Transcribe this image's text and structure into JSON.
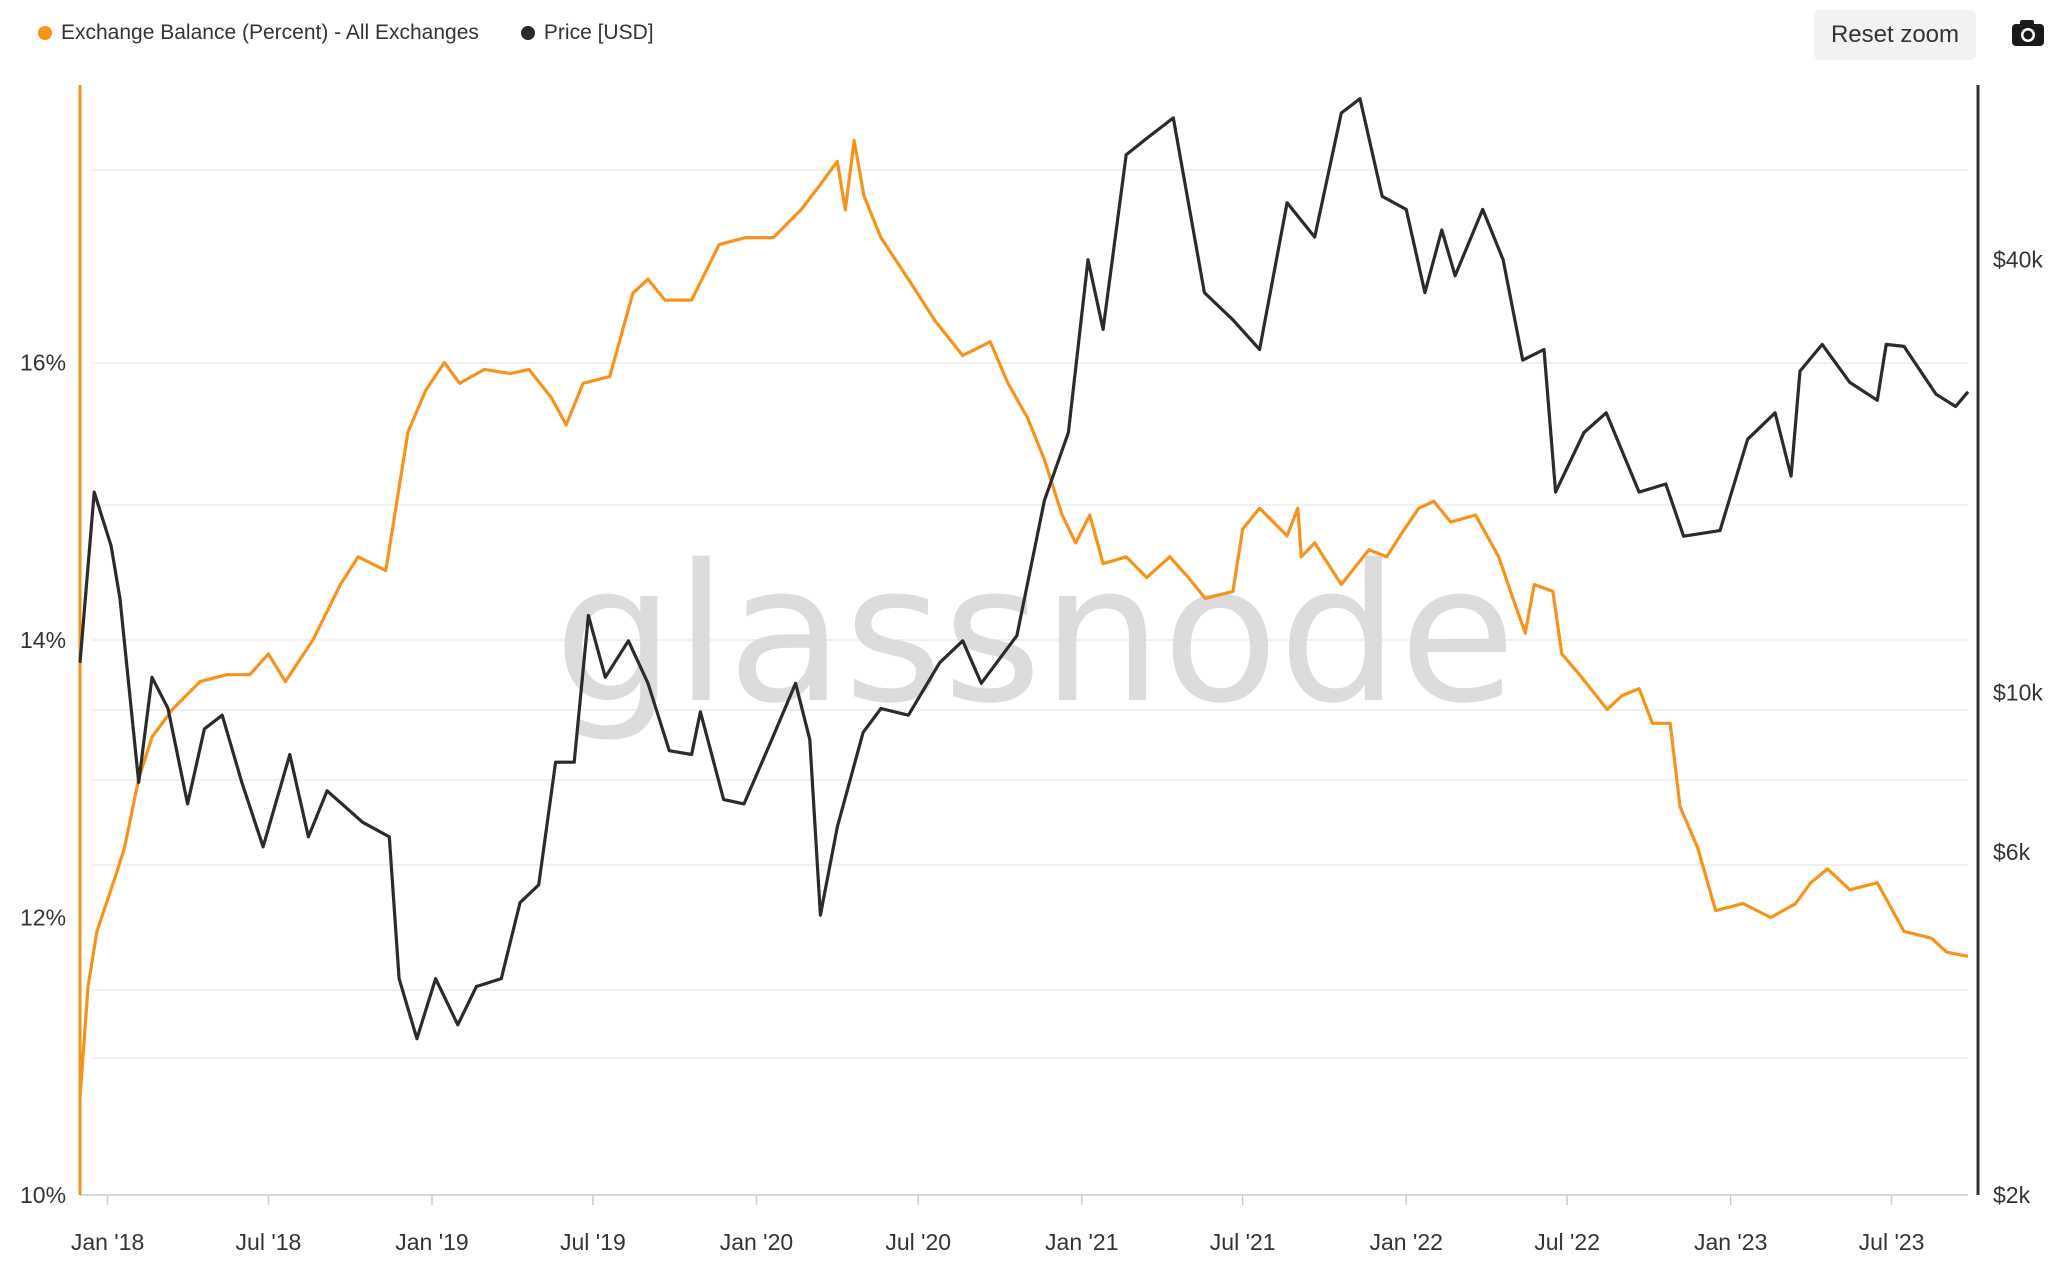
{
  "legend": {
    "items": [
      {
        "label": "Exchange Balance (Percent) - All Exchanges",
        "color": "#f7931a"
      },
      {
        "label": "Price [USD]",
        "color": "#2b2b2b"
      }
    ]
  },
  "toolbar": {
    "reset_zoom_label": "Reset zoom",
    "camera_icon": "camera-icon"
  },
  "watermark": "glassnode",
  "chart_data": {
    "type": "line",
    "x_ticks": [
      "Jan '18",
      "Jul '18",
      "Jan '19",
      "Jul '19",
      "Jan '20",
      "Jul '20",
      "Jan '21",
      "Jul '21",
      "Jan '22",
      "Jul '22",
      "Jan '23",
      "Jul '23"
    ],
    "y_left": {
      "ticks": [
        "10%",
        "12%",
        "14%",
        "16%"
      ],
      "min": 10,
      "max": 18,
      "unit": "%"
    },
    "y_right": {
      "ticks": [
        "$2k",
        "$6k",
        "$10k",
        "$40k"
      ],
      "scale": "log",
      "min": 2000,
      "max": 70000,
      "unit": "USD"
    },
    "series": [
      {
        "name": "Exchange Balance (Percent) - All Exchanges",
        "color": "#f7931a",
        "axis": "left",
        "points": [
          [
            "2017-12-01",
            10.7
          ],
          [
            "2017-12-10",
            11.5
          ],
          [
            "2017-12-20",
            11.9
          ],
          [
            "2018-01-10",
            12.3
          ],
          [
            "2018-01-20",
            12.5
          ],
          [
            "2018-02-05",
            13.0
          ],
          [
            "2018-02-20",
            13.3
          ],
          [
            "2018-03-15",
            13.5
          ],
          [
            "2018-04-15",
            13.7
          ],
          [
            "2018-05-15",
            13.75
          ],
          [
            "2018-06-10",
            13.75
          ],
          [
            "2018-07-01",
            13.9
          ],
          [
            "2018-07-20",
            13.7
          ],
          [
            "2018-08-20",
            14.0
          ],
          [
            "2018-09-20",
            14.4
          ],
          [
            "2018-10-10",
            14.6
          ],
          [
            "2018-11-10",
            14.5
          ],
          [
            "2018-11-20",
            14.9
          ],
          [
            "2018-12-05",
            15.5
          ],
          [
            "2018-12-25",
            15.8
          ],
          [
            "2019-01-15",
            16.0
          ],
          [
            "2019-02-01",
            15.85
          ],
          [
            "2019-03-01",
            15.95
          ],
          [
            "2019-03-30",
            15.92
          ],
          [
            "2019-04-20",
            15.95
          ],
          [
            "2019-05-15",
            15.75
          ],
          [
            "2019-06-01",
            15.55
          ],
          [
            "2019-06-20",
            15.85
          ],
          [
            "2019-07-20",
            15.9
          ],
          [
            "2019-08-15",
            16.5
          ],
          [
            "2019-09-01",
            16.6
          ],
          [
            "2019-09-20",
            16.45
          ],
          [
            "2019-10-20",
            16.45
          ],
          [
            "2019-11-20",
            16.85
          ],
          [
            "2019-12-20",
            16.9
          ],
          [
            "2020-01-20",
            16.9
          ],
          [
            "2020-02-20",
            17.1
          ],
          [
            "2020-03-15",
            17.3
          ],
          [
            "2020-04-01",
            17.45
          ],
          [
            "2020-04-10",
            17.1
          ],
          [
            "2020-04-20",
            17.6
          ],
          [
            "2020-05-01",
            17.2
          ],
          [
            "2020-05-20",
            16.9
          ],
          [
            "2020-06-20",
            16.6
          ],
          [
            "2020-07-20",
            16.3
          ],
          [
            "2020-08-20",
            16.05
          ],
          [
            "2020-09-20",
            16.15
          ],
          [
            "2020-10-10",
            15.85
          ],
          [
            "2020-11-01",
            15.6
          ],
          [
            "2020-11-20",
            15.3
          ],
          [
            "2020-12-10",
            14.9
          ],
          [
            "2020-12-25",
            14.7
          ],
          [
            "2021-01-10",
            14.9
          ],
          [
            "2021-01-25",
            14.55
          ],
          [
            "2021-02-20",
            14.6
          ],
          [
            "2021-03-15",
            14.45
          ],
          [
            "2021-04-10",
            14.6
          ],
          [
            "2021-05-01",
            14.45
          ],
          [
            "2021-05-20",
            14.3
          ],
          [
            "2021-06-20",
            14.35
          ],
          [
            "2021-07-01",
            14.8
          ],
          [
            "2021-07-20",
            14.95
          ],
          [
            "2021-08-20",
            14.75
          ],
          [
            "2021-09-01",
            14.95
          ],
          [
            "2021-09-05",
            14.6
          ],
          [
            "2021-09-20",
            14.7
          ],
          [
            "2021-10-20",
            14.4
          ],
          [
            "2021-11-20",
            14.65
          ],
          [
            "2021-12-10",
            14.6
          ],
          [
            "2021-12-25",
            14.75
          ],
          [
            "2022-01-15",
            14.95
          ],
          [
            "2022-02-01",
            15.0
          ],
          [
            "2022-02-20",
            14.85
          ],
          [
            "2022-03-20",
            14.9
          ],
          [
            "2022-04-15",
            14.6
          ],
          [
            "2022-05-01",
            14.3
          ],
          [
            "2022-05-15",
            14.05
          ],
          [
            "2022-05-25",
            14.4
          ],
          [
            "2022-06-15",
            14.35
          ],
          [
            "2022-06-25",
            13.9
          ],
          [
            "2022-07-15",
            13.75
          ],
          [
            "2022-08-15",
            13.5
          ],
          [
            "2022-09-01",
            13.6
          ],
          [
            "2022-09-20",
            13.65
          ],
          [
            "2022-10-05",
            13.4
          ],
          [
            "2022-10-25",
            13.4
          ],
          [
            "2022-11-05",
            12.8
          ],
          [
            "2022-11-25",
            12.5
          ],
          [
            "2022-12-15",
            12.05
          ],
          [
            "2023-01-15",
            12.1
          ],
          [
            "2023-02-15",
            12.0
          ],
          [
            "2023-03-15",
            12.1
          ],
          [
            "2023-04-01",
            12.25
          ],
          [
            "2023-04-20",
            12.35
          ],
          [
            "2023-05-15",
            12.2
          ],
          [
            "2023-06-15",
            12.25
          ],
          [
            "2023-07-15",
            11.9
          ],
          [
            "2023-08-15",
            11.85
          ],
          [
            "2023-09-01",
            11.75
          ],
          [
            "2023-09-25",
            11.72
          ]
        ]
      },
      {
        "name": "Price [USD]",
        "color": "#2b2b2b",
        "axis": "right",
        "points": [
          [
            "2017-12-01",
            11000
          ],
          [
            "2017-12-17",
            19000
          ],
          [
            "2018-01-05",
            16000
          ],
          [
            "2018-01-15",
            13500
          ],
          [
            "2018-02-05",
            7500
          ],
          [
            "2018-02-20",
            10500
          ],
          [
            "2018-03-10",
            9500
          ],
          [
            "2018-04-01",
            7000
          ],
          [
            "2018-04-20",
            8900
          ],
          [
            "2018-05-10",
            9300
          ],
          [
            "2018-06-01",
            7500
          ],
          [
            "2018-06-25",
            6100
          ],
          [
            "2018-07-25",
            8200
          ],
          [
            "2018-08-15",
            6300
          ],
          [
            "2018-09-05",
            7300
          ],
          [
            "2018-10-15",
            6600
          ],
          [
            "2018-11-14",
            6300
          ],
          [
            "2018-11-25",
            4000
          ],
          [
            "2018-12-15",
            3300
          ],
          [
            "2019-01-05",
            4000
          ],
          [
            "2019-01-30",
            3450
          ],
          [
            "2019-02-20",
            3900
          ],
          [
            "2019-03-20",
            4000
          ],
          [
            "2019-04-10",
            5100
          ],
          [
            "2019-05-01",
            5400
          ],
          [
            "2019-05-20",
            8000
          ],
          [
            "2019-06-10",
            8000
          ],
          [
            "2019-06-26",
            12800
          ],
          [
            "2019-07-15",
            10500
          ],
          [
            "2019-08-10",
            11800
          ],
          [
            "2019-09-01",
            10300
          ],
          [
            "2019-09-25",
            8300
          ],
          [
            "2019-10-20",
            8200
          ],
          [
            "2019-10-30",
            9400
          ],
          [
            "2019-11-25",
            7100
          ],
          [
            "2019-12-18",
            7000
          ],
          [
            "2020-01-20",
            8700
          ],
          [
            "2020-02-14",
            10300
          ],
          [
            "2020-03-01",
            8600
          ],
          [
            "2020-03-13",
            4900
          ],
          [
            "2020-04-01",
            6500
          ],
          [
            "2020-04-30",
            8800
          ],
          [
            "2020-05-20",
            9500
          ],
          [
            "2020-06-20",
            9300
          ],
          [
            "2020-07-25",
            11000
          ],
          [
            "2020-08-20",
            11800
          ],
          [
            "2020-09-10",
            10300
          ],
          [
            "2020-10-20",
            12000
          ],
          [
            "2020-11-20",
            18500
          ],
          [
            "2020-12-17",
            23000
          ],
          [
            "2021-01-08",
            40000
          ],
          [
            "2021-01-25",
            32000
          ],
          [
            "2021-02-20",
            56000
          ],
          [
            "2021-03-15",
            59000
          ],
          [
            "2021-04-14",
            63000
          ],
          [
            "2021-05-19",
            36000
          ],
          [
            "2021-06-20",
            33000
          ],
          [
            "2021-07-20",
            30000
          ],
          [
            "2021-08-20",
            48000
          ],
          [
            "2021-09-20",
            43000
          ],
          [
            "2021-10-20",
            64000
          ],
          [
            "2021-11-10",
            67000
          ],
          [
            "2021-12-05",
            49000
          ],
          [
            "2022-01-01",
            47000
          ],
          [
            "2022-01-22",
            36000
          ],
          [
            "2022-02-10",
            44000
          ],
          [
            "2022-02-25",
            38000
          ],
          [
            "2022-03-28",
            47000
          ],
          [
            "2022-04-20",
            40000
          ],
          [
            "2022-05-12",
            29000
          ],
          [
            "2022-06-05",
            30000
          ],
          [
            "2022-06-18",
            19000
          ],
          [
            "2022-07-20",
            23000
          ],
          [
            "2022-08-14",
            24500
          ],
          [
            "2022-09-20",
            19000
          ],
          [
            "2022-10-20",
            19500
          ],
          [
            "2022-11-09",
            16500
          ],
          [
            "2022-12-20",
            16800
          ],
          [
            "2023-01-20",
            22500
          ],
          [
            "2023-02-20",
            24500
          ],
          [
            "2023-03-10",
            20000
          ],
          [
            "2023-03-20",
            28000
          ],
          [
            "2023-04-14",
            30500
          ],
          [
            "2023-05-15",
            27000
          ],
          [
            "2023-06-15",
            25500
          ],
          [
            "2023-06-25",
            30500
          ],
          [
            "2023-07-15",
            30300
          ],
          [
            "2023-08-20",
            26000
          ],
          [
            "2023-09-11",
            25000
          ],
          [
            "2023-09-25",
            26200
          ]
        ]
      }
    ],
    "grid": true,
    "legend_position": "top-left"
  }
}
